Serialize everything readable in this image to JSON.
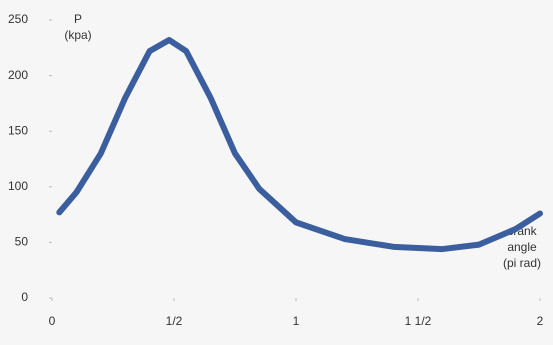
{
  "chart_data": {
    "type": "line",
    "y_label": [
      "P",
      "(kpa)"
    ],
    "x_label": [
      "crank",
      "angle",
      "(pi rad)"
    ],
    "x": [
      0.03,
      0.1,
      0.2,
      0.3,
      0.4,
      0.48,
      0.55,
      0.65,
      0.75,
      0.85,
      1.0,
      1.2,
      1.4,
      1.6,
      1.75,
      1.9,
      2.0
    ],
    "series": [
      {
        "color": "#3b5f9e",
        "values": [
          77,
          95,
          130,
          180,
          222,
          232,
          222,
          180,
          130,
          98,
          68,
          53,
          46,
          44,
          48,
          62,
          76
        ]
      }
    ],
    "xlim": [
      0,
      2
    ],
    "xticks": [
      0,
      {
        "value": 0.5,
        "label": "1/2"
      },
      1,
      {
        "value": 1.5,
        "label": "1 1/2"
      },
      2
    ],
    "ylim": [
      0,
      250
    ],
    "yticks": [
      0,
      50,
      100,
      150,
      200,
      250
    ]
  }
}
